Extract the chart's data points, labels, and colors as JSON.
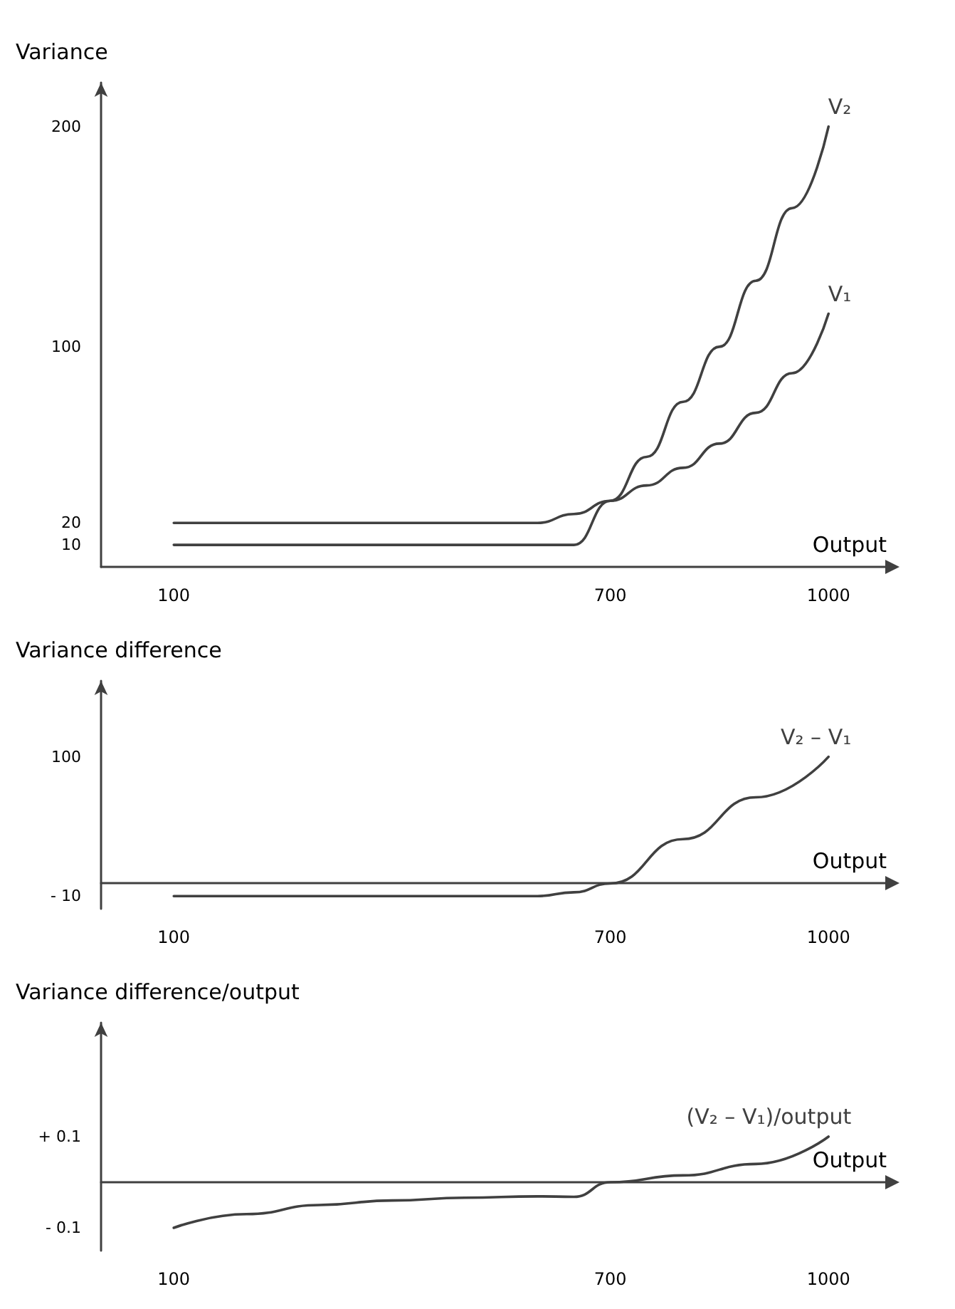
{
  "chart_data": [
    {
      "type": "line",
      "xlabel": "Output",
      "ylabel": "Variance",
      "x": [
        100,
        200,
        300,
        400,
        500,
        600,
        650,
        700,
        750,
        800,
        850,
        900,
        950,
        1000
      ],
      "xlim": [
        0,
        1080
      ],
      "xticks": [
        100,
        700,
        1000
      ],
      "ylim": [
        0,
        220
      ],
      "yticks": [
        10,
        20,
        100,
        200
      ],
      "grid": false,
      "legend": false,
      "marker": "none",
      "line_style": "solid",
      "series": [
        {
          "name": "V₂",
          "color": "#404040",
          "values": [
            10,
            10,
            10,
            10,
            10,
            10,
            10,
            30,
            50,
            75,
            100,
            130,
            163,
            200
          ]
        },
        {
          "name": "V₁",
          "color": "#404040",
          "values": [
            20,
            20,
            20,
            20,
            20,
            20,
            24,
            30,
            37,
            45,
            56,
            70,
            88,
            115
          ]
        }
      ]
    },
    {
      "type": "line",
      "xlabel": "Output",
      "ylabel": "Variance difference",
      "x": [
        100,
        200,
        300,
        400,
        500,
        600,
        650,
        700,
        800,
        900,
        1000
      ],
      "xlim": [
        0,
        1080
      ],
      "xticks": [
        100,
        700,
        1000
      ],
      "ylim": [
        -20,
        160
      ],
      "yticks": [
        {
          "value": -10,
          "label": "- 10"
        },
        100
      ],
      "grid": false,
      "legend": false,
      "marker": "none",
      "line_style": "solid",
      "series": [
        {
          "name": "V₂ – V₁",
          "color": "#404040",
          "values": [
            -10,
            -10,
            -10,
            -10,
            -10,
            -10,
            -7,
            0,
            35,
            68,
            100
          ]
        }
      ]
    },
    {
      "type": "line",
      "xlabel": "Output",
      "ylabel": "Variance difference/output",
      "x": [
        100,
        200,
        300,
        400,
        500,
        600,
        650,
        700,
        800,
        900,
        1000
      ],
      "xlim": [
        0,
        1080
      ],
      "xticks": [
        100,
        700,
        1000
      ],
      "ylim": [
        -0.15,
        0.35
      ],
      "yticks": [
        {
          "value": -0.1,
          "label": "- 0.1"
        },
        {
          "value": 0.1,
          "label": "+ 0.1"
        }
      ],
      "grid": false,
      "legend": false,
      "marker": "none",
      "line_style": "solid",
      "series": [
        {
          "name": "(V₂ – V₁)/output",
          "color": "#404040",
          "values": [
            -0.1,
            -0.07,
            -0.05,
            -0.04,
            -0.034,
            -0.031,
            -0.032,
            0,
            0.015,
            0.04,
            0.1
          ]
        }
      ]
    }
  ]
}
